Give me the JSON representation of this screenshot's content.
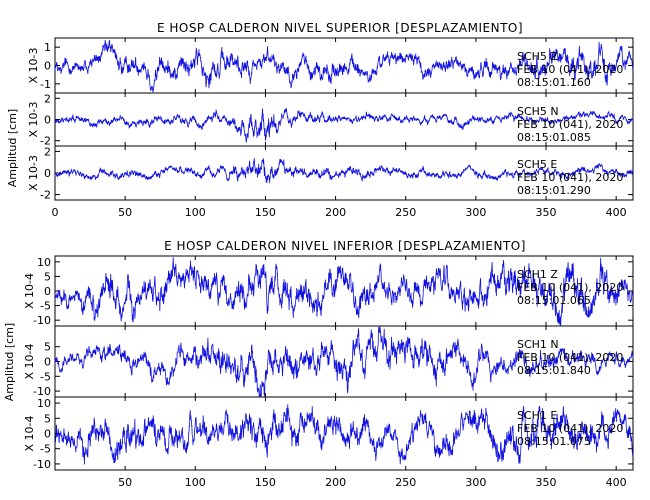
{
  "chart_data": [
    {
      "type": "line",
      "title": "E HOSP CALDERON NIVEL SUPERIOR [DESPLAZAMIENTO]",
      "ylabel": "Amplitud [cm]",
      "xlim": [
        0,
        412
      ],
      "x_ticks": [
        "0",
        "50",
        "100",
        "150",
        "200",
        "250",
        "300",
        "350",
        "400"
      ],
      "panels": [
        {
          "unit_label": "X 10-3",
          "ylim": [
            -1.5,
            1.5
          ],
          "y_ticks": [
            "1",
            "0",
            "-1"
          ],
          "annotation": [
            "SCH5   Z",
            "FEB 10 (041), 2020",
            "08:15:01.160"
          ],
          "envelope": [
            [
              0,
              0.55
            ],
            [
              60,
              0.8
            ],
            [
              120,
              0.95
            ],
            [
              160,
              0.75
            ],
            [
              200,
              0.85
            ],
            [
              250,
              0.6
            ],
            [
              300,
              0.7
            ],
            [
              350,
              0.85
            ],
            [
              390,
              1.2
            ],
            [
              412,
              0.6
            ]
          ]
        },
        {
          "unit_label": "X 10-3",
          "ylim": [
            -2.5,
            2.5
          ],
          "y_ticks": [
            "2",
            "0",
            "-2"
          ],
          "annotation": [
            "SCH5   N",
            "FEB 10 (041), 2020",
            "08:15:01.085"
          ],
          "envelope": [
            [
              0,
              0.55
            ],
            [
              120,
              0.7
            ],
            [
              140,
              1.6
            ],
            [
              148,
              2.2
            ],
            [
              160,
              1.0
            ],
            [
              200,
              0.6
            ],
            [
              300,
              0.5
            ],
            [
              412,
              0.5
            ]
          ]
        },
        {
          "unit_label": "X 10-3",
          "ylim": [
            -2.5,
            2.5
          ],
          "y_ticks": [
            "2",
            "0",
            "-2"
          ],
          "annotation": [
            "SCH5   E",
            "FEB 10 (041), 2020",
            "08:15:01.290"
          ],
          "envelope": [
            [
              0,
              0.5
            ],
            [
              120,
              0.6
            ],
            [
              140,
              1.6
            ],
            [
              148,
              2.0
            ],
            [
              160,
              0.9
            ],
            [
              250,
              0.55
            ],
            [
              412,
              0.5
            ]
          ]
        }
      ]
    },
    {
      "type": "line",
      "title": "E HOSP CALDERON NIVEL INFERIOR [DESPLAZAMIENTO]",
      "ylabel": "Amplitud [cm]",
      "xlim": [
        0,
        412
      ],
      "x_ticks": [
        "50",
        "100",
        "150",
        "200",
        "250",
        "300",
        "350",
        "400"
      ],
      "panels": [
        {
          "unit_label": "X 10-4",
          "ylim": [
            -12,
            12
          ],
          "y_ticks": [
            "10",
            "5",
            "0",
            "-5",
            "-10"
          ],
          "annotation": [
            "SCH1   Z",
            "FEB 10 (041), 2020",
            "08:15:01.065"
          ],
          "envelope": [
            [
              0,
              5
            ],
            [
              40,
              8
            ],
            [
              100,
              7
            ],
            [
              150,
              9
            ],
            [
              250,
              6
            ],
            [
              320,
              9
            ],
            [
              400,
              10
            ],
            [
              412,
              7
            ]
          ]
        },
        {
          "unit_label": "X 10-4",
          "ylim": [
            -12,
            12
          ],
          "y_ticks": [
            "5",
            "0",
            "-5",
            "-10"
          ],
          "annotation": [
            "SCH1   N",
            "FEB 10 (041), 2020",
            "08:15:01.840"
          ],
          "envelope": [
            [
              0,
              3
            ],
            [
              100,
              6
            ],
            [
              145,
              10
            ],
            [
              160,
              7
            ],
            [
              230,
              9
            ],
            [
              300,
              6
            ],
            [
              412,
              3
            ]
          ]
        },
        {
          "unit_label": "X 10-4",
          "ylim": [
            -12,
            12
          ],
          "y_ticks": [
            "10",
            "5",
            "0",
            "-5",
            "-10"
          ],
          "annotation": [
            "SCH1   E",
            "FEB 10 (041), 2020",
            "08:15:01.075"
          ],
          "envelope": [
            [
              0,
              6
            ],
            [
              50,
              8
            ],
            [
              100,
              7
            ],
            [
              145,
              8
            ],
            [
              250,
              6
            ],
            [
              350,
              9
            ],
            [
              412,
              6
            ]
          ]
        }
      ]
    }
  ]
}
